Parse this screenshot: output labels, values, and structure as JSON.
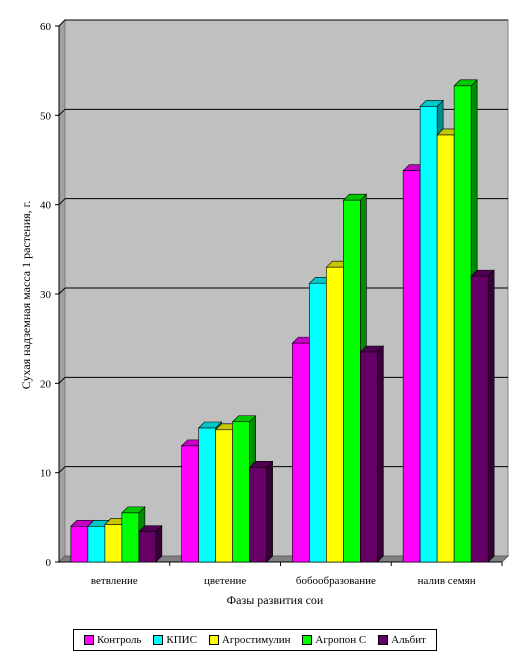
{
  "chart_data": {
    "type": "bar",
    "title": "",
    "xlabel": "Фазы развития сои",
    "ylabel": "Сухая надземная масса 1 растения, г.",
    "ylim": [
      0,
      60
    ],
    "yticks": [
      "0",
      "10",
      "20",
      "30",
      "40",
      "50",
      "60"
    ],
    "grid": true,
    "legend_position": "bottom",
    "categories": [
      "ветвление",
      "цветение",
      "бобообразование",
      "налив семян"
    ],
    "series": [
      {
        "name": "Контроль",
        "color": "#ff00ff",
        "values": [
          4.0,
          13.0,
          24.5,
          43.8
        ]
      },
      {
        "name": "КПИС",
        "color": "#00ffff",
        "values": [
          4.0,
          15.0,
          31.2,
          51.0
        ]
      },
      {
        "name": "Агростимулин",
        "color": "#ffff00",
        "values": [
          4.2,
          14.8,
          33.0,
          47.8
        ]
      },
      {
        "name": "Агропон С",
        "color": "#00ff00",
        "values": [
          5.5,
          15.7,
          40.5,
          53.3
        ]
      },
      {
        "name": "Альбит",
        "color": "#660066",
        "values": [
          3.4,
          10.6,
          23.5,
          32.0
        ]
      }
    ]
  }
}
